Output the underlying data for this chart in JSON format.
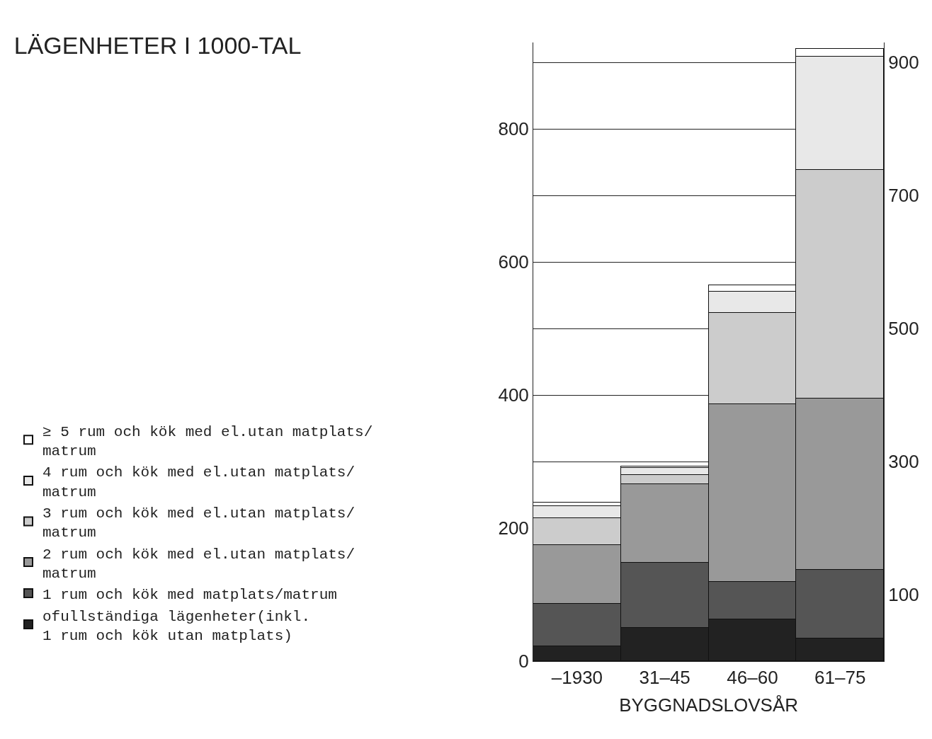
{
  "chart_data": {
    "type": "bar",
    "stacked": true,
    "title": "LÄGENHETER I 1000-TAL",
    "xlabel": "BYGGNADSLOVSÅR",
    "categories": [
      "–1930",
      "31–45",
      "46–60",
      "61–75"
    ],
    "series": [
      {
        "name": "ofullständiga lägenheter(inkl.\n1 rum och kök utan matplats)",
        "color": "#222222",
        "values": [
          22,
          50,
          63,
          34
        ]
      },
      {
        "name": "1 rum och kök med matplats/matrum",
        "color": "#555555",
        "values": [
          64,
          98,
          56,
          103
        ]
      },
      {
        "name": "2 rum och kök med el.utan matplats/\nmatrum",
        "color": "#999999",
        "values": [
          88,
          118,
          267,
          258
        ]
      },
      {
        "name": "3 rum och kök med el.utan matplats/\nmatrum",
        "color": "#cccccc",
        "values": [
          41,
          14,
          137,
          344
        ]
      },
      {
        "name": "4 rum och kök med el.utan matplats/\nmatrum",
        "color": "#e8e8e8",
        "values": [
          18,
          10,
          32,
          170
        ]
      },
      {
        "name": "≥ 5 rum och kök med el.utan matplats/\nmatrum",
        "color": "#ffffff",
        "values": [
          5,
          3,
          10,
          11
        ]
      }
    ],
    "ylim": [
      0,
      930
    ],
    "yticks": [
      0,
      200,
      400,
      600,
      800
    ],
    "y2lim": [
      0,
      930
    ],
    "y2ticks": [
      100,
      300,
      500,
      700,
      900
    ],
    "grid": "y",
    "legend": "left"
  }
}
